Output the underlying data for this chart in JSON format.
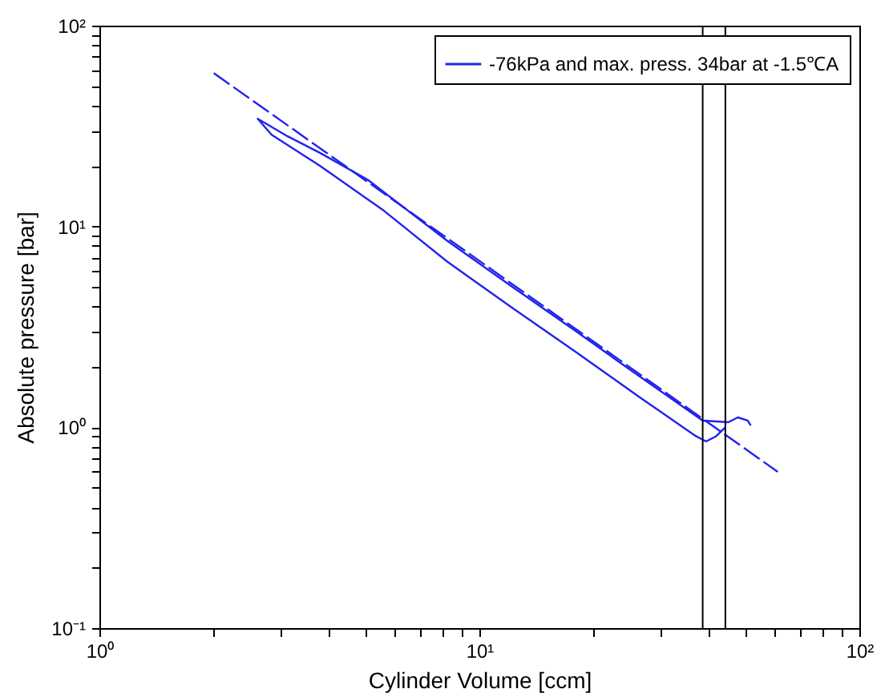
{
  "chart_data": {
    "type": "line",
    "xlabel": "Cylinder Volume [ccm]",
    "ylabel": "Absolute pressure [bar]",
    "log": "xy",
    "xlim": [
      1,
      100
    ],
    "ylim": [
      0.1,
      100
    ],
    "xticks": [
      {
        "value": 1,
        "label": "10⁰"
      },
      {
        "value": 2,
        "label": null
      },
      {
        "value": 3,
        "label": null
      },
      {
        "value": 4,
        "label": null
      },
      {
        "value": 5,
        "label": null
      },
      {
        "value": 6,
        "label": null
      },
      {
        "value": 7,
        "label": null
      },
      {
        "value": 8,
        "label": null
      },
      {
        "value": 9,
        "label": null
      },
      {
        "value": 10,
        "label": "10¹"
      },
      {
        "value": 20,
        "label": null
      },
      {
        "value": 30,
        "label": null
      },
      {
        "value": 40,
        "label": null
      },
      {
        "value": 50,
        "label": null
      },
      {
        "value": 60,
        "label": null
      },
      {
        "value": 70,
        "label": null
      },
      {
        "value": 80,
        "label": null
      },
      {
        "value": 90,
        "label": null
      },
      {
        "value": 100,
        "label": "10²"
      }
    ],
    "yticks": [
      {
        "value": 0.1,
        "label": "10⁻¹"
      },
      {
        "value": 0.2,
        "label": null
      },
      {
        "value": 0.3,
        "label": null
      },
      {
        "value": 0.4,
        "label": null
      },
      {
        "value": 0.5,
        "label": null
      },
      {
        "value": 0.6,
        "label": null
      },
      {
        "value": 0.7,
        "label": null
      },
      {
        "value": 0.8,
        "label": null
      },
      {
        "value": 0.9,
        "label": null
      },
      {
        "value": 1,
        "label": "10⁰"
      },
      {
        "value": 2,
        "label": null
      },
      {
        "value": 3,
        "label": null
      },
      {
        "value": 4,
        "label": null
      },
      {
        "value": 5,
        "label": null
      },
      {
        "value": 6,
        "label": null
      },
      {
        "value": 7,
        "label": null
      },
      {
        "value": 8,
        "label": null
      },
      {
        "value": 9,
        "label": null
      },
      {
        "value": 10,
        "label": "10¹"
      },
      {
        "value": 20,
        "label": null
      },
      {
        "value": 30,
        "label": null
      },
      {
        "value": 40,
        "label": null
      },
      {
        "value": 50,
        "label": null
      },
      {
        "value": 60,
        "label": null
      },
      {
        "value": 70,
        "label": null
      },
      {
        "value": 80,
        "label": null
      },
      {
        "value": 90,
        "label": null
      },
      {
        "value": 100,
        "label": "10²"
      }
    ],
    "grid": false,
    "legend": "top right",
    "marker": "none",
    "series": [
      {
        "name": "-76kPa and max. press. 34bar at -1.5℃A",
        "color": "#2222ee",
        "x": [
          51.8,
          50.8,
          47.9,
          45.2,
          38.7,
          26.3,
          17.9,
          12.1,
          8.24,
          5.08,
          3.8,
          3.13,
          2.61,
          2.84,
          3.8,
          5.6,
          8.24,
          12.1,
          17.9,
          26.3,
          36.9,
          39.5,
          41.9,
          44.4
        ],
        "values": [
          1.02,
          1.08,
          1.12,
          1.06,
          1.08,
          1.8,
          3.02,
          5.06,
          8.47,
          17.1,
          23.3,
          28.1,
          34.4,
          28.6,
          20.1,
          12.0,
          6.67,
          3.98,
          2.38,
          1.42,
          0.91,
          0.85,
          0.9,
          1.0
        ]
      },
      {
        "type": "line",
        "color": "#2222ee",
        "line_style": "dashed",
        "x": [
          2,
          61
        ],
        "values": [
          58,
          0.6
        ]
      }
    ],
    "ref_lines": [
      {
        "axis": "x",
        "value": 38.7,
        "color": "#000000"
      },
      {
        "axis": "x",
        "value": 44.4,
        "color": "#000000"
      }
    ]
  }
}
